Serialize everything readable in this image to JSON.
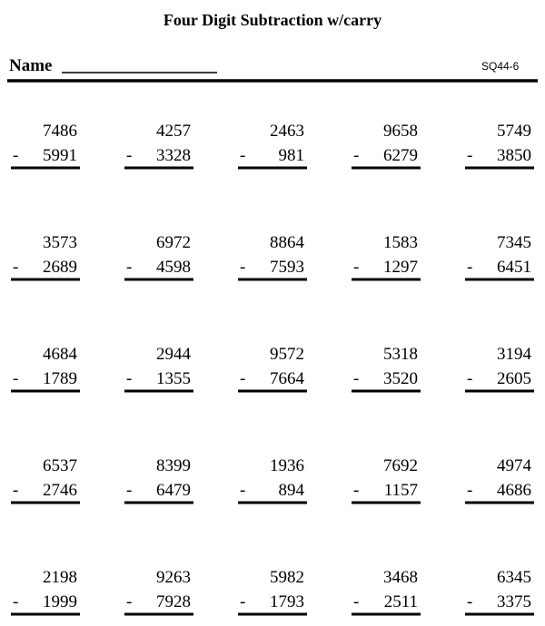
{
  "header": {
    "title": "Four Digit Subtraction w/carry",
    "name_label": "Name",
    "code": "SQ44-6"
  },
  "operator": "-",
  "problems": [
    [
      {
        "top": "7486",
        "bottom": "5991"
      },
      {
        "top": "4257",
        "bottom": "3328"
      },
      {
        "top": "2463",
        "bottom": "981"
      },
      {
        "top": "9658",
        "bottom": "6279"
      },
      {
        "top": "5749",
        "bottom": "3850"
      }
    ],
    [
      {
        "top": "3573",
        "bottom": "2689"
      },
      {
        "top": "6972",
        "bottom": "4598"
      },
      {
        "top": "8864",
        "bottom": "7593"
      },
      {
        "top": "1583",
        "bottom": "1297"
      },
      {
        "top": "7345",
        "bottom": "6451"
      }
    ],
    [
      {
        "top": "4684",
        "bottom": "1789"
      },
      {
        "top": "2944",
        "bottom": "1355"
      },
      {
        "top": "9572",
        "bottom": "7664"
      },
      {
        "top": "5318",
        "bottom": "3520"
      },
      {
        "top": "3194",
        "bottom": "2605"
      }
    ],
    [
      {
        "top": "6537",
        "bottom": "2746"
      },
      {
        "top": "8399",
        "bottom": "6479"
      },
      {
        "top": "1936",
        "bottom": "894"
      },
      {
        "top": "7692",
        "bottom": "1157"
      },
      {
        "top": "4974",
        "bottom": "4686"
      }
    ],
    [
      {
        "top": "2198",
        "bottom": "1999"
      },
      {
        "top": "9263",
        "bottom": "7928"
      },
      {
        "top": "5982",
        "bottom": "1793"
      },
      {
        "top": "3468",
        "bottom": "2511"
      },
      {
        "top": "6345",
        "bottom": "3375"
      }
    ]
  ]
}
